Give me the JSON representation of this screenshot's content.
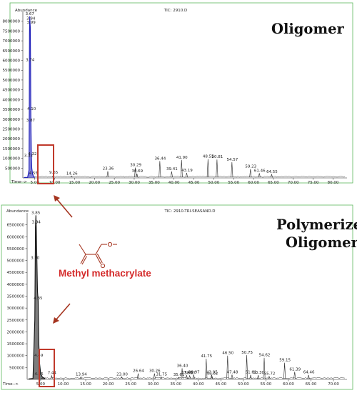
{
  "chart_data": [
    {
      "type": "line",
      "title": "TIC: 2910.D",
      "ylabel": "Abundance",
      "xlabel": "Time-->",
      "annotation": "Oligomer",
      "xlim": [
        2.0,
        83.5
      ],
      "ylim": [
        0,
        8500000
      ],
      "x_ticks": [
        "5.00",
        "10.00",
        "15.00",
        "20.00",
        "25.00",
        "30.00",
        "35.00",
        "40.00",
        "45.00",
        "50.00",
        "55.00",
        "60.00",
        "65.00",
        "70.00",
        "75.00",
        "80.00"
      ],
      "y_ticks": [
        "500000",
        "1000000",
        "1500000",
        "2000000",
        "2500000",
        "3000000",
        "3500000",
        "4000000",
        "4500000",
        "5000000",
        "5500000",
        "6000000",
        "6500000",
        "7000000",
        "7500000",
        "8000000"
      ],
      "main_peak": {
        "x": [
          2.3,
          3.2,
          3.55,
          3.62,
          3.67,
          3.74,
          3.8,
          3.87,
          3.94,
          4.0,
          4.06,
          4.14,
          4.25,
          4.45,
          4.7,
          5.0
        ],
        "y": [
          20000,
          30000,
          400000,
          3600000,
          7400000,
          8250000,
          7950000,
          7700000,
          5900000,
          3400000,
          2300000,
          1200000,
          500000,
          200000,
          70000,
          30000
        ]
      },
      "peaks": [
        {
          "label": "3.67",
          "x": 3.67,
          "y": 8250000
        },
        {
          "label": "3.94",
          "x": 3.94,
          "y": 8000000
        },
        {
          "label": "3.99",
          "x": 3.99,
          "y": 7800000
        },
        {
          "label": "3.74",
          "x": 3.74,
          "y": 5900000
        },
        {
          "label": "4.10",
          "x": 4.1,
          "y": 3400000
        },
        {
          "label": "3.87",
          "x": 3.87,
          "y": 2800000
        },
        {
          "label": "3.32",
          "x": 3.32,
          "y": 1000000
        },
        {
          "label": "4.32",
          "x": 4.32,
          "y": 1100000
        },
        {
          "label": "4.55",
          "x": 4.55,
          "y": 110000
        },
        {
          "label": "9.65",
          "x": 9.65,
          "y": 140000
        },
        {
          "label": "14.26",
          "x": 14.26,
          "y": 100000
        },
        {
          "label": "23.36",
          "x": 23.36,
          "y": 340000
        },
        {
          "label": "30.29",
          "x": 30.29,
          "y": 530000
        },
        {
          "label": "30.69",
          "x": 30.69,
          "y": 210000
        },
        {
          "label": "36.44",
          "x": 36.44,
          "y": 860000
        },
        {
          "label": "39.41",
          "x": 39.41,
          "y": 330000
        },
        {
          "label": "41.90",
          "x": 41.9,
          "y": 920000
        },
        {
          "label": "43.19",
          "x": 43.19,
          "y": 260000
        },
        {
          "label": "48.55",
          "x": 48.55,
          "y": 960000
        },
        {
          "label": "50.81",
          "x": 50.81,
          "y": 940000
        },
        {
          "label": "54.57",
          "x": 54.57,
          "y": 800000
        },
        {
          "label": "59.23",
          "x": 59.23,
          "y": 450000
        },
        {
          "label": "61.46",
          "x": 61.46,
          "y": 240000
        },
        {
          "label": "64.55",
          "x": 64.55,
          "y": 180000
        }
      ]
    },
    {
      "type": "line",
      "title": "TIC: 2910-TRI-SEASAND.D",
      "ylabel": "Abundance",
      "xlabel": "Time-->",
      "annotation": "Polymerized Oligomer",
      "xlim": [
        2.0,
        73.0
      ],
      "ylim": [
        0,
        7000000
      ],
      "x_ticks": [
        "5.00",
        "10.00",
        "15.00",
        "20.00",
        "25.00",
        "30.00",
        "35.00",
        "40.00",
        "45.00",
        "50.00",
        "55.00",
        "60.00",
        "65.00",
        "70.00"
      ],
      "y_ticks": [
        "500000",
        "1000000",
        "1500000",
        "2000000",
        "2500000",
        "3000000",
        "3500000",
        "4000000",
        "4500000",
        "5000000",
        "5500000",
        "6000000",
        "6500000"
      ],
      "main_peak": {
        "x": [
          2.3,
          3.3,
          3.7,
          3.85,
          3.95,
          4.05,
          4.15,
          4.3,
          4.45,
          4.6,
          4.75,
          5.0,
          5.4,
          6.0
        ],
        "y": [
          20000,
          40000,
          2500000,
          6400000,
          6900000,
          6200000,
          5200000,
          3700000,
          3300000,
          1500000,
          700000,
          250000,
          90000,
          40000
        ]
      },
      "peaks": [
        {
          "label": "3.85",
          "x": 3.85,
          "y": 6900000
        },
        {
          "label": "3.94",
          "x": 3.94,
          "y": 6500000
        },
        {
          "label": "3.70",
          "x": 3.7,
          "y": 5000000
        },
        {
          "label": "4.35",
          "x": 4.35,
          "y": 3300000
        },
        {
          "label": "4.49",
          "x": 4.49,
          "y": 900000
        },
        {
          "label": "4.55",
          "x": 4.55,
          "y": 120000
        },
        {
          "label": "7.44",
          "x": 7.44,
          "y": 160000
        },
        {
          "label": "13.94",
          "x": 13.94,
          "y": 110000
        },
        {
          "label": "23.00",
          "x": 23.0,
          "y": 110000
        },
        {
          "label": "26.64",
          "x": 26.64,
          "y": 250000
        },
        {
          "label": "30.26",
          "x": 30.26,
          "y": 250000
        },
        {
          "label": "31.75",
          "x": 31.75,
          "y": 110000
        },
        {
          "label": "35.61",
          "x": 35.61,
          "y": 90000
        },
        {
          "label": "36.40",
          "x": 36.4,
          "y": 470000
        },
        {
          "label": "37.40",
          "x": 37.4,
          "y": 180000
        },
        {
          "label": "38.07",
          "x": 38.07,
          "y": 170000
        },
        {
          "label": "38.97",
          "x": 38.97,
          "y": 200000
        },
        {
          "label": "41.75",
          "x": 41.75,
          "y": 870000
        },
        {
          "label": "42.95",
          "x": 42.95,
          "y": 200000
        },
        {
          "label": "43.02",
          "x": 43.02,
          "y": 140000
        },
        {
          "label": "46.50",
          "x": 46.5,
          "y": 1000000
        },
        {
          "label": "47.48",
          "x": 47.48,
          "y": 200000
        },
        {
          "label": "50.75",
          "x": 50.75,
          "y": 1020000
        },
        {
          "label": "51.61",
          "x": 51.61,
          "y": 190000
        },
        {
          "label": "53.30",
          "x": 53.3,
          "y": 180000
        },
        {
          "label": "54.62",
          "x": 54.62,
          "y": 910000
        },
        {
          "label": "55.72",
          "x": 55.72,
          "y": 130000
        },
        {
          "label": "59.15",
          "x": 59.15,
          "y": 700000
        },
        {
          "label": "61.39",
          "x": 61.39,
          "y": 320000
        },
        {
          "label": "64.46",
          "x": 64.46,
          "y": 190000
        }
      ]
    }
  ],
  "annotations": {
    "molecule_label": "Methyl methacrylate",
    "box_color": "#c0392b",
    "arrow_color": "#a5341f",
    "line_colors": {
      "main_peak": "#1c1cb8",
      "main_peak_2": "#111111",
      "baseline": "#2b2b2b"
    }
  }
}
